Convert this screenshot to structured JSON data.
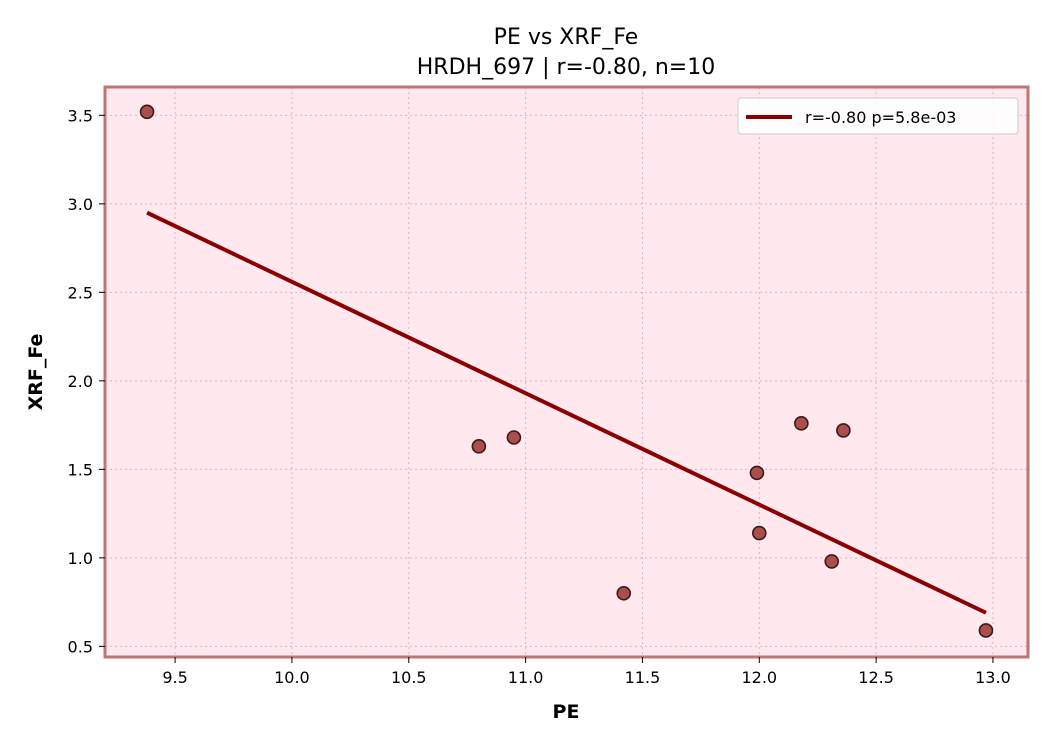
{
  "chart_data": {
    "type": "scatter",
    "title": "PE vs XRF_Fe",
    "subtitle": "HRDH_697 | r=-0.80, n=10",
    "xlabel": "PE",
    "ylabel": "XRF_Fe",
    "xlim": [
      9.2,
      13.15
    ],
    "ylim": [
      0.44,
      3.66
    ],
    "xticks": [
      9.5,
      10.0,
      10.5,
      11.0,
      11.5,
      12.0,
      12.5,
      13.0
    ],
    "xtick_labels": [
      "9.5",
      "10.0",
      "10.5",
      "11.0",
      "11.5",
      "12.0",
      "12.5",
      "13.0"
    ],
    "yticks": [
      0.5,
      1.0,
      1.5,
      2.0,
      2.5,
      3.0,
      3.5
    ],
    "ytick_labels": [
      "0.5",
      "1.0",
      "1.5",
      "2.0",
      "2.5",
      "3.0",
      "3.5"
    ],
    "grid": true,
    "legend_position": "top-right",
    "points": [
      {
        "x": 9.38,
        "y": 3.52
      },
      {
        "x": 10.8,
        "y": 1.63
      },
      {
        "x": 10.95,
        "y": 1.68
      },
      {
        "x": 11.42,
        "y": 0.8
      },
      {
        "x": 11.99,
        "y": 1.48
      },
      {
        "x": 12.0,
        "y": 1.14
      },
      {
        "x": 12.18,
        "y": 1.76
      },
      {
        "x": 12.31,
        "y": 0.98
      },
      {
        "x": 12.36,
        "y": 1.72
      },
      {
        "x": 12.97,
        "y": 0.59
      }
    ],
    "fit_line": {
      "label": "r=-0.80  p=5.8e-03",
      "x": [
        9.38,
        12.97
      ],
      "y": [
        2.95,
        0.69
      ]
    },
    "colors": {
      "plot_background": "#ffe9ee",
      "frame": "#c07474",
      "marker_fill": "#a84444",
      "marker_edge": "#3a1a1a",
      "fit_line": "#8b0000",
      "grid": "#d9b8bf"
    }
  }
}
